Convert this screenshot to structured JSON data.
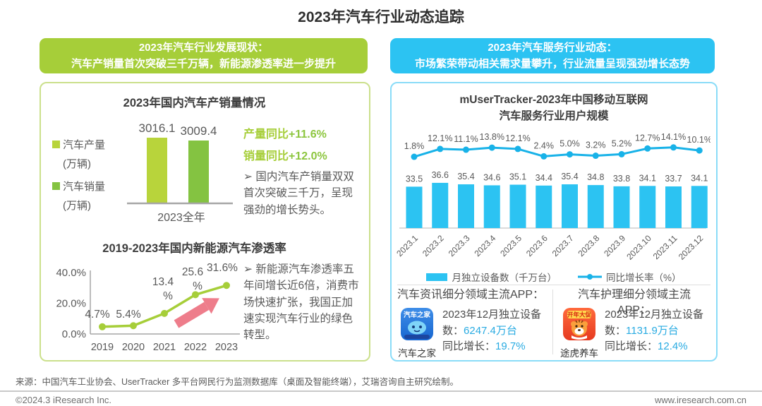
{
  "page": {
    "title": "2023年汽车行业动态追踪",
    "footer": {
      "source": "来源：中国汽车工业协会、UserTracker 多平台网民行为监测数据库（桌面及智能终端），艾瑞咨询自主研究绘制。",
      "copyright": "©2024.3 iResearch Inc.",
      "website": "www.iresearch.com.cn"
    }
  },
  "colors": {
    "green_header": "#a6ce39",
    "green_bar_production": "#b8d43b",
    "green_bar_sales": "#84c341",
    "green_panel_border": "#cbe08c",
    "cyan_header": "#2cc3f2",
    "cyan_line": "#18b2e8",
    "cyan_value_text": "#29abe2",
    "cyan_panel_border": "#8adcf8",
    "pink_arrow": "#ee7d8b",
    "text_gray": "#595959"
  },
  "left": {
    "header_line1": "2023年汽车行业发展现状：",
    "header_line2": "汽车产销量首次突破三千万辆，新能源渗透率进一步提升",
    "bullet": "➢",
    "bar_xlabel": "2023全年",
    "bar_legend": [
      {
        "label": "汽车产量",
        "unit": "(万辆)",
        "color": "#b8d43b"
      },
      {
        "label": "汽车销量",
        "unit": "(万辆)",
        "color": "#84c341"
      }
    ],
    "yoy": {
      "production_label": "产量同比",
      "production_value": "+11.6%",
      "sales_label": "销量同比",
      "sales_value": "+12.0%"
    },
    "note1": "国内汽车产销量双双首次突破三千万，呈现强劲的增长势头。",
    "note2": "新能源汽车渗透率五年间增长近6倍，消费市场快速扩张，我国正加速实现汽车行业的绿色转型。"
  },
  "right": {
    "header_line1": "2023年汽车服务行业动态：",
    "header_line2": "市场繁荣带动相关需求量攀升，行业流量呈现强劲增长态势",
    "legend_bar": "月独立设备数（千万台）",
    "legend_line": "同比增长率（%）",
    "apps": [
      {
        "category_title": "汽车资讯细分领域主流APP：",
        "app_name": "汽车之家",
        "icon_name": "autohome-app-icon",
        "icon_label": "汽车之家",
        "line1_prefix": "2023年12月独立设备数：",
        "line1_value": "6247.4万台",
        "line2_prefix": "同比增长：",
        "line2_value": "19.7%"
      },
      {
        "category_title": "汽车护理细分领域主流APP：",
        "app_name": "途虎养车",
        "icon_name": "tuhu-app-icon",
        "icon_label": "开年大促",
        "line1_prefix": "2023年12月独立设备数：",
        "line1_value": "1131.9万台",
        "line2_prefix": "同比增长：",
        "line2_value": "12.4%"
      }
    ]
  },
  "chart_data": [
    {
      "type": "bar",
      "title": "2023年国内汽车产销量情况",
      "categories": [
        "2023全年"
      ],
      "series": [
        {
          "name": "汽车产量(万辆)",
          "values": [
            3016.1
          ],
          "color": "#b8d43b"
        },
        {
          "name": "汽车销量(万辆)",
          "values": [
            3009.4
          ],
          "color": "#84c341"
        }
      ],
      "annotations": [
        "产量同比+11.6%",
        "销量同比+12.0%",
        "国内汽车产销量双双首次突破三千万，呈现强劲的增长势头。"
      ],
      "ylim": [
        0,
        3100
      ],
      "grid": false
    },
    {
      "type": "line",
      "title": "2019-2023年国内新能源汽车渗透率",
      "categories": [
        "2019",
        "2020",
        "2021",
        "2022",
        "2023"
      ],
      "values": [
        4.7,
        5.4,
        13.4,
        25.6,
        31.6
      ],
      "point_labels": [
        "4.7%",
        "5.4%",
        "13.4%",
        "25.6%",
        "31.6%"
      ],
      "ytick_labels": [
        "0.0%",
        "20.0%",
        "40.0%"
      ],
      "ylim": [
        0,
        40
      ],
      "line_color": "#a6ce39",
      "annotation": "新能源汽车渗透率五年间增长近6倍，消费市场快速扩张，我国正加速实现汽车行业的绿色转型。",
      "grid": false
    },
    {
      "type": "bar+line",
      "title": "mUserTracker-2023年中国移动互联网汽车服务行业用户规模",
      "title_line1": "mUserTracker-2023年中国移动互联网",
      "title_line2": "汽车服务行业用户规模",
      "categories": [
        "2023.1",
        "2023.2",
        "2023.3",
        "2023.4",
        "2023.5",
        "2023.6",
        "2023.7",
        "2023.8",
        "2023.9",
        "2023.10",
        "2023.11",
        "2023.12"
      ],
      "series": [
        {
          "name": "月独立设备数（千万台）",
          "chart": "bar",
          "color": "#2cc3f2",
          "values": [
            33.5,
            36.6,
            35.4,
            34.6,
            35.1,
            34.4,
            35.4,
            34.8,
            33.8,
            34.1,
            33.7,
            34.1
          ],
          "labels": [
            "33.5",
            "36.6",
            "35.4",
            "34.6",
            "35.1",
            "34.4",
            "35.4",
            "34.8",
            "33.8",
            "34.1",
            "33.7",
            "34.1"
          ]
        },
        {
          "name": "同比增长率（%）",
          "chart": "line",
          "color": "#18b2e8",
          "values": [
            1.8,
            12.1,
            11.1,
            13.8,
            12.1,
            2.4,
            5.0,
            3.2,
            5.2,
            12.7,
            14.1,
            10.1
          ],
          "labels": [
            "1.8%",
            "12.1%",
            "11.1%",
            "13.8%",
            "12.1%",
            "2.4%",
            "5.0%",
            "3.2%",
            "5.2%",
            "12.7%",
            "14.1%",
            "10.1%"
          ]
        }
      ],
      "legend_position": "bottom",
      "grid": false
    }
  ]
}
